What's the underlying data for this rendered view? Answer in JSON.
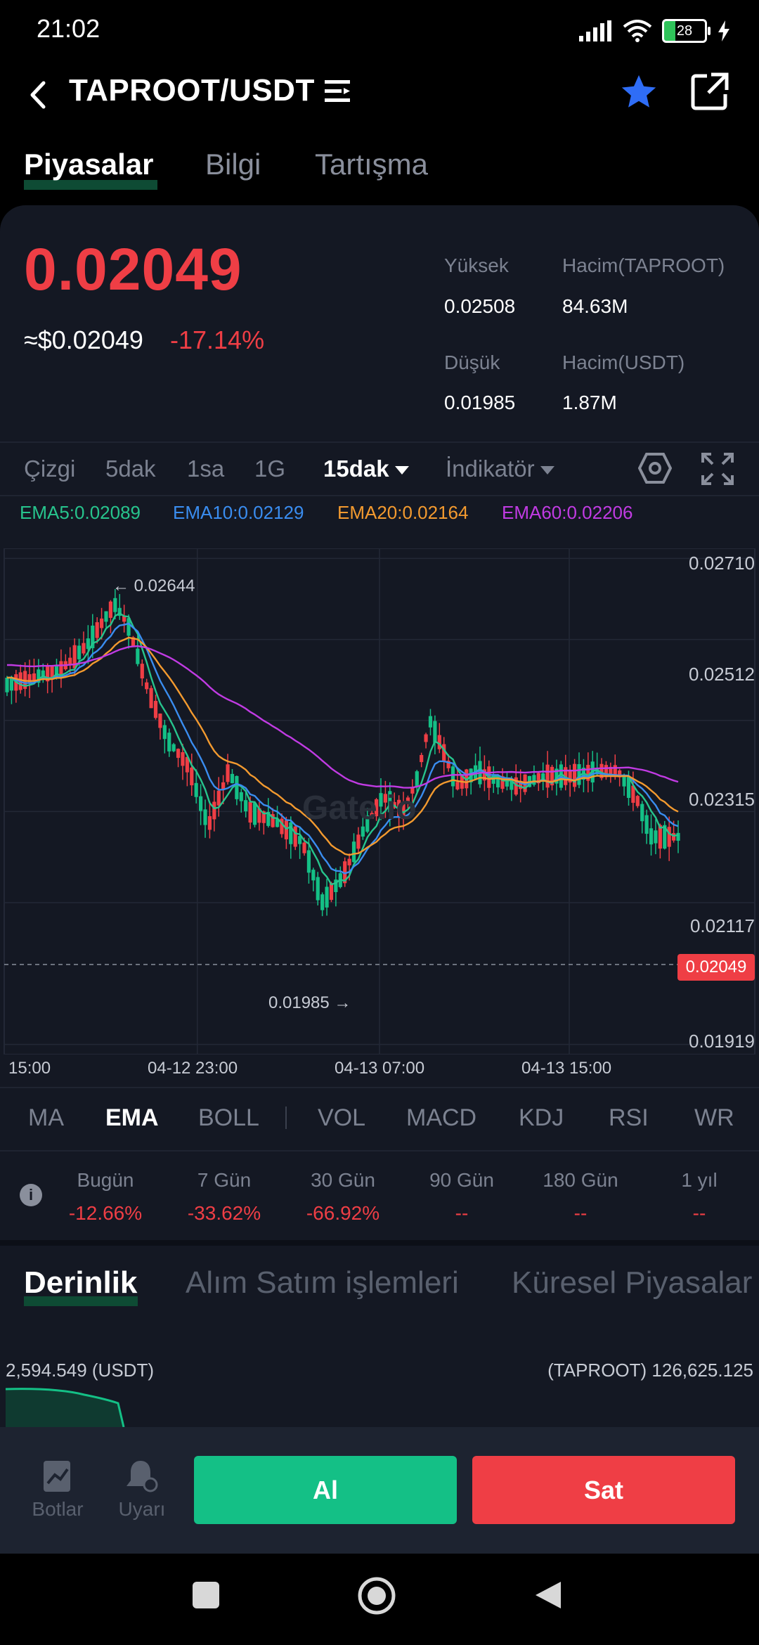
{
  "status": {
    "time": "21:02",
    "battery": "28"
  },
  "header": {
    "title": "TAPROOT/USDT"
  },
  "tabs": [
    "Piyasalar",
    "Bilgi",
    "Tartışma"
  ],
  "ticker": {
    "price": "0.02049",
    "usd_price": "≈$0.02049",
    "change": "-17.14%",
    "high_label": "Yüksek",
    "high_value": "0.02508",
    "vol_base_label": "Hacim(TAPROOT)",
    "vol_base_value": "84.63M",
    "low_label": "Düşük",
    "low_value": "0.01985",
    "vol_quote_label": "Hacim(USDT)",
    "vol_quote_value": "1.87M"
  },
  "intervals": [
    "Çizgi",
    "5dak",
    "1sa",
    "1G",
    "15dak",
    "İndikatör"
  ],
  "ema_legend": [
    {
      "text": "EMA5:0.02089",
      "color": "#27c48d"
    },
    {
      "text": "EMA10:0.02129",
      "color": "#3a8df0"
    },
    {
      "text": "EMA20:0.02164",
      "color": "#f39a2f"
    },
    {
      "text": "EMA60:0.02206",
      "color": "#c13be3"
    }
  ],
  "chart_data": {
    "type": "candlestick",
    "y_ticks": [
      "0.02710",
      "0.02512",
      "0.02315",
      "0.02117",
      "0.01919"
    ],
    "x_ticks": [
      "15:00",
      "04-12 23:00",
      "04-13 07:00",
      "04-13 15:00"
    ],
    "high_marker": "← 0.02644",
    "low_marker": "0.01985 →",
    "last_price": "0.02049",
    "watermark": "Gate.io",
    "ylim": [
      0.01919,
      0.0271
    ],
    "series": [
      {
        "name": "EMA5",
        "color": "#27c48d"
      },
      {
        "name": "EMA10",
        "color": "#3a8df0"
      },
      {
        "name": "EMA20",
        "color": "#f39a2f"
      },
      {
        "name": "EMA60",
        "color": "#c13be3"
      }
    ]
  },
  "indicator_tabs": [
    "MA",
    "EMA",
    "BOLL",
    "VOL",
    "MACD",
    "KDJ",
    "RSI",
    "WR"
  ],
  "periods": [
    {
      "label": "Bugün",
      "value": "-12.66%"
    },
    {
      "label": "7 Gün",
      "value": "-33.62%"
    },
    {
      "label": "30 Gün",
      "value": "-66.92%"
    },
    {
      "label": "90 Gün",
      "value": "--"
    },
    {
      "label": "180 Gün",
      "value": "--"
    },
    {
      "label": "1 yıl",
      "value": "--"
    }
  ],
  "depth_tabs": [
    "Derinlik",
    "Alım Satım işlemleri",
    "Küresel Piyasalar"
  ],
  "depth": {
    "left": "2,594.549 (USDT)",
    "right": "(TAPROOT) 126,625.125"
  },
  "bottom": {
    "bots": "Botlar",
    "alerts": "Uyarı",
    "buy": "Al",
    "sell": "Sat"
  }
}
